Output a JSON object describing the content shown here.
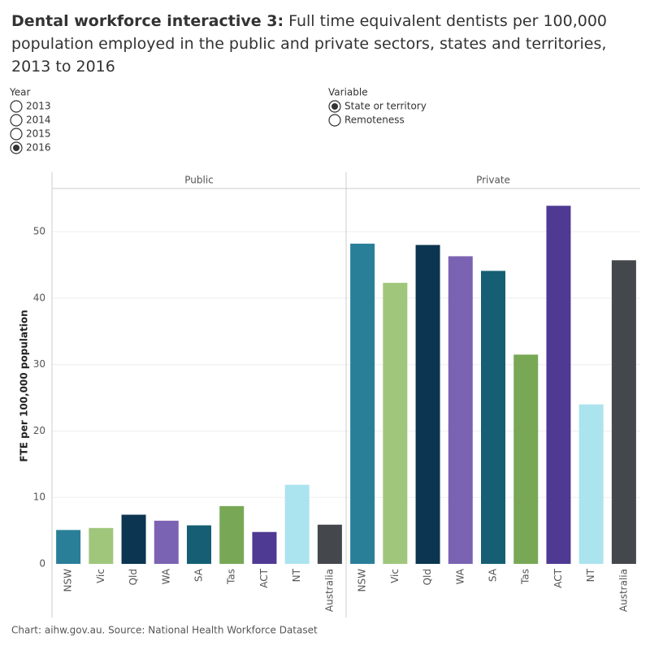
{
  "controls": [
    {
      "label": "Year",
      "options": [
        "2013",
        "2014",
        "2015",
        "2016"
      ],
      "selected": 3
    },
    {
      "label": "Variable",
      "options": [
        "State or territory",
        "Remoteness"
      ],
      "selected": 0
    }
  ],
  "chart_data": {
    "type": "bar",
    "title_lead": "Dental workforce interactive 3:",
    "title": "Full time equivalent dentists per 100,000 population employed in the public and private sectors, states and territories, 2013 to 2016",
    "y_label": "FTE per 100,000 population",
    "source": "Chart: aihw.gov.au. Source: National Health Workforce Dataset",
    "ylim": [
      0,
      56.5
    ],
    "yticks": [
      0,
      10,
      20,
      30,
      40,
      50
    ],
    "grid": true,
    "categories": [
      "NSW",
      "Vic",
      "Qld",
      "WA",
      "SA",
      "Tas",
      "ACT",
      "NT",
      "Australia"
    ],
    "colors": [
      "#2a7f98",
      "#a0c67c",
      "#0b3550",
      "#7b63b3",
      "#165e74",
      "#78a856",
      "#4f3a93",
      "#abe3ef",
      "#44484c"
    ],
    "panels": [
      {
        "name": "Public",
        "values": [
          5.1,
          5.4,
          7.4,
          6.5,
          5.8,
          8.7,
          4.8,
          11.9,
          5.9
        ]
      },
      {
        "name": "Private",
        "values": [
          48.2,
          42.3,
          48.0,
          46.3,
          44.1,
          31.5,
          53.9,
          24.0,
          45.7
        ]
      }
    ]
  }
}
